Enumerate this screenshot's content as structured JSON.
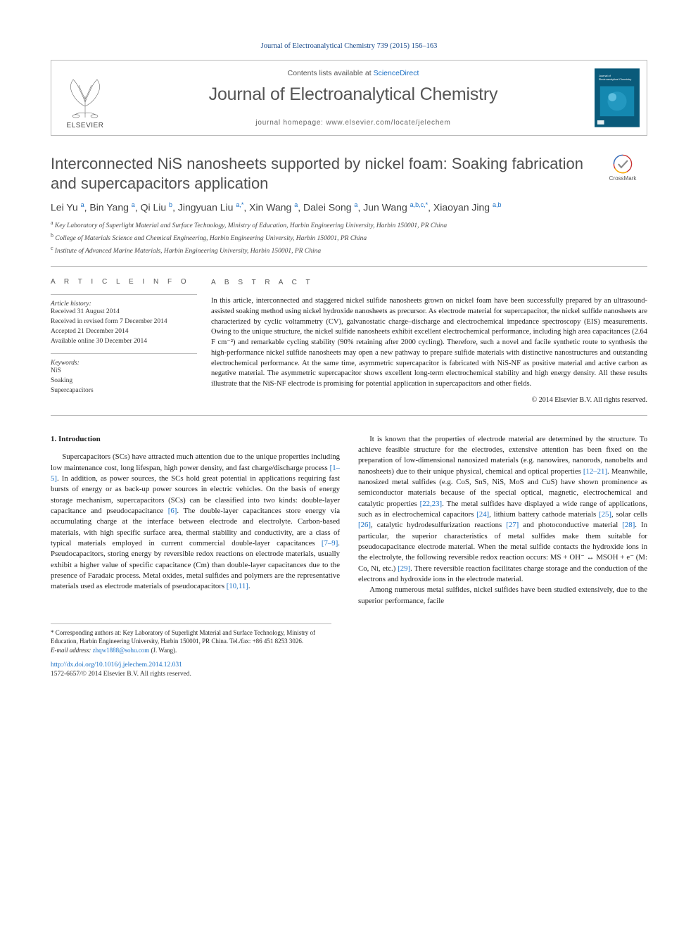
{
  "citation": "Journal of Electroanalytical Chemistry 739 (2015) 156–163",
  "header": {
    "contents_prefix": "Contents lists available at ",
    "contents_link": "ScienceDirect",
    "journal_name": "Journal of Electroanalytical Chemistry",
    "homepage_prefix": "journal homepage: ",
    "homepage_url": "www.elsevier.com/locate/jelechem",
    "publisher_logo_label": "ELSEVIER"
  },
  "crossmark_label": "CrossMark",
  "title": "Interconnected NiS nanosheets supported by nickel foam: Soaking fabrication and supercapacitors application",
  "authors_html": "Lei Yu <sup>a</sup>, Bin Yang <sup>a</sup>, Qi Liu <sup>b</sup>, Jingyuan Liu <sup>a,*</sup>, Xin Wang <sup>a</sup>, Dalei Song <sup>a</sup>, Jun Wang <sup>a,b,c,*</sup>, Xiaoyan Jing <sup>a,b</sup>",
  "affiliations": [
    {
      "sup": "a",
      "text": "Key Laboratory of Superlight Material and Surface Technology, Ministry of Education, Harbin Engineering University, Harbin 150001, PR China"
    },
    {
      "sup": "b",
      "text": "College of Materials Science and Chemical Engineering, Harbin Engineering University, Harbin 150001, PR China"
    },
    {
      "sup": "c",
      "text": "Institute of Advanced Marine Materials, Harbin Engineering University, Harbin 150001, PR China"
    }
  ],
  "info": {
    "heading": "A R T I C L E   I N F O",
    "history_label": "Article history:",
    "history": [
      "Received 31 August 2014",
      "Received in revised form 7 December 2014",
      "Accepted 21 December 2014",
      "Available online 30 December 2014"
    ],
    "keywords_label": "Keywords:",
    "keywords": [
      "NiS",
      "Soaking",
      "Supercapacitors"
    ]
  },
  "abstract": {
    "heading": "A B S T R A C T",
    "text": "In this article, interconnected and staggered nickel sulfide nanosheets grown on nickel foam have been successfully prepared by an ultrasound-assisted soaking method using nickel hydroxide nanosheets as precursor. As electrode material for supercapacitor, the nickel sulfide nanosheets are characterized by cyclic voltammetry (CV), galvanostatic charge–discharge and electrochemical impedance spectroscopy (EIS) measurements. Owing to the unique structure, the nickel sulfide nanosheets exhibit excellent electrochemical performance, including high area capacitances (2.64 F cm⁻²) and remarkable cycling stability (90% retaining after 2000 cycling). Therefore, such a novel and facile synthetic route to synthesis the high-performance nickel sulfide nanosheets may open a new pathway to prepare sulfide materials with distinctive nanostructures and outstanding electrochemical performance. At the same time, asymmetric supercapacitor is fabricated with NiS-NF as positive material and active carbon as negative material. The asymmetric supercapacitor shows excellent long-term electrochemical stability and high energy density. All these results illustrate that the NiS-NF electrode is promising for potential application in supercapacitors and other fields.",
    "copyright": "© 2014 Elsevier B.V. All rights reserved."
  },
  "body": {
    "section_number": "1.",
    "section_title": "Introduction",
    "p1_a": "Supercapacitors (SCs) have attracted much attention due to the unique properties including low maintenance cost, long lifespan, high power density, and fast charge/discharge process ",
    "p1_ref1": "[1–5]",
    "p1_b": ". In addition, as power sources, the SCs hold great potential in applications requiring fast bursts of energy or as back-up power sources in electric vehicles. On the basis of energy storage mechanism, supercapacitors (SCs) can be classified into two kinds: double-layer capacitance and pseudocapacitance ",
    "p1_ref2": "[6]",
    "p1_c": ". The double-layer capacitances store energy via accumulating charge at the interface between electrode and electrolyte. Carbon-based materials, with high specific surface area, thermal stability and conductivity, are a class of typical materials employed in current commercial double-layer capacitances ",
    "p1_ref3": "[7–9]",
    "p1_d": ". Pseudocapacitors, storing energy by reversible redox reactions on electrode materials, usually exhibit a higher value of specific capacitance (Cm) than double-layer capacitances due to the presence of Faradaic process. Metal oxides, metal sulfides and polymers are the representative materials used as electrode materials of pseudocapacitors ",
    "p1_ref4": "[10,11]",
    "p1_e": ".",
    "p2_a": "It is known that the properties of electrode material are determined by the structure. To achieve feasible structure for the electrodes, extensive attention has been fixed on the preparation of low-dimensional nanosized materials (e.g. nanowires, nanorods, nanobelts and nanosheets) due to their unique physical, chemical and optical properties ",
    "p2_ref1": "[12–21]",
    "p2_b": ". Meanwhile, nanosized metal sulfides (e.g. CoS, SnS, NiS, MoS and CuS) have shown prominence as semiconductor materials because of the special optical, magnetic, electrochemical and catalytic properties ",
    "p2_ref2": "[22,23]",
    "p2_c": ". The metal sulfides have displayed a wide range of applications, such as in electrochemical capacitors ",
    "p2_ref3": "[24]",
    "p2_d": ", lithium battery cathode materials ",
    "p2_ref4": "[25]",
    "p2_e": ", solar cells ",
    "p2_ref5": "[26]",
    "p2_f": ", catalytic hydrodesulfurization reactions ",
    "p2_ref6": "[27]",
    "p2_g": " and photoconductive material ",
    "p2_ref7": "[28]",
    "p2_h": ". In particular, the superior characteristics of metal sulfides make them suitable for pseudocapacitance electrode material. When the metal sulfide contacts the hydroxide ions in the electrolyte, the following reversible redox reaction occurs: MS + OH⁻ ↔ MSOH + e⁻ (M: Co, Ni, etc.) ",
    "p2_ref8": "[29]",
    "p2_i": ". There reversible reaction facilitates charge storage and the conduction of the electrons and hydroxide ions in the electrode material.",
    "p3": "Among numerous metal sulfides, nickel sulfides have been studied extensively, due to the superior performance, facile"
  },
  "footnote": {
    "corr": "* Corresponding authors at: Key Laboratory of Superlight Material and Surface Technology, Ministry of Education, Harbin Engineering University, Harbin 150001, PR China. Tel./fax: +86 451 8253 3026.",
    "email_label": "E-mail address: ",
    "email": "zhqw1888@sohu.com",
    "email_who": " (J. Wang).",
    "doi": "http://dx.doi.org/10.1016/j.jelechem.2014.12.031",
    "issn": "1572-6657/© 2014 Elsevier B.V. All rights reserved."
  },
  "colors": {
    "link": "#1a6fc4",
    "elsevier_orange": "#eb6500",
    "cover_bg": "#0a5a7a",
    "text_gray": "#505050"
  }
}
